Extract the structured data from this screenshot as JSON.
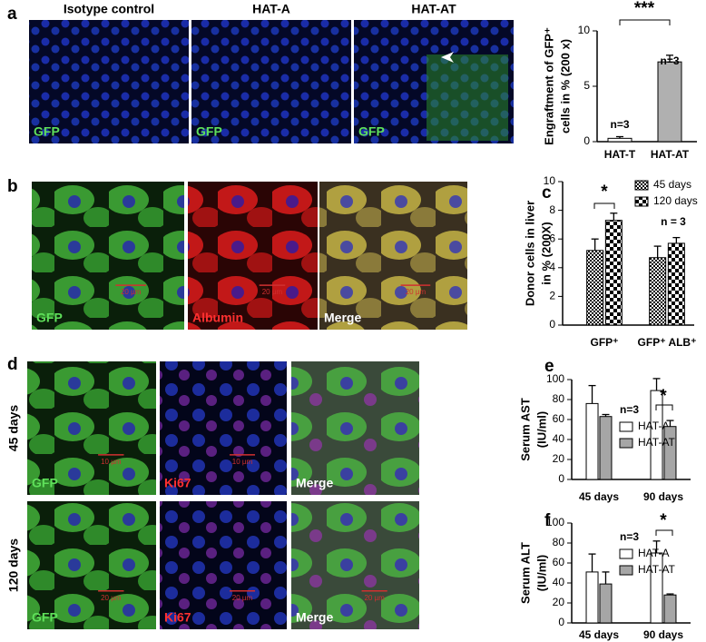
{
  "figure": {
    "labels": [
      "a",
      "b",
      "c",
      "d",
      "e",
      "f"
    ],
    "a": {
      "titles": [
        "Isotype control",
        "HAT-A",
        "HAT-AT"
      ],
      "channels": [
        "GFP",
        "GFP",
        "GFP"
      ]
    },
    "b": {
      "channels": [
        "GFP",
        "Albumin",
        "Merge"
      ],
      "scale": [
        "20 µm",
        "20 µm",
        "20 µm"
      ]
    },
    "d": {
      "rows": [
        "45 days",
        "120 days"
      ],
      "channels": [
        [
          "GFP",
          "Ki67",
          "Merge"
        ],
        [
          "GFP",
          "Ki67",
          "Merge"
        ]
      ],
      "scale": [
        [
          "10 µm",
          "10 µm"
        ],
        [
          "20 µm",
          "20 µm",
          "20 µm"
        ]
      ]
    }
  },
  "chart_data": [
    {
      "type": "bar",
      "ylabel": [
        "Engraftment of GFP⁺",
        "cells in % (200 x)"
      ],
      "categories": [
        "HAT-T",
        "HAT-AT"
      ],
      "series": [
        {
          "values": [
            0.3,
            7.2
          ],
          "errors": [
            0.15,
            0.6
          ],
          "colors": [
            "#ffffff",
            "#b0b0b0"
          ]
        }
      ],
      "ylim": [
        0,
        10
      ],
      "yticks": [
        0,
        5,
        10
      ],
      "annotations": [
        "n=3",
        "n=3",
        "***"
      ]
    },
    {
      "type": "bar",
      "ylabel": [
        "Donor cells in liver",
        "in % (200X)"
      ],
      "categories": [
        "GFP⁺",
        "GFP⁺ ALB⁺"
      ],
      "series": [
        {
          "name": "45 days",
          "values": [
            5.2,
            4.7
          ],
          "errors": [
            0.8,
            0.8
          ],
          "hatch": "fine"
        },
        {
          "name": "120 days",
          "values": [
            7.3,
            5.7
          ],
          "errors": [
            0.5,
            0.4
          ],
          "hatch": "coarse"
        }
      ],
      "ylim": [
        0,
        10
      ],
      "yticks": [
        0,
        2,
        4,
        6,
        8,
        10
      ],
      "annotations": [
        "*",
        "n = 3"
      ]
    },
    {
      "type": "bar",
      "ylabel": [
        "Serum AST",
        "(IU/ml)"
      ],
      "categories": [
        "45 days",
        "90 days"
      ],
      "series": [
        {
          "name": "HAT-A",
          "values": [
            76,
            89
          ],
          "errors": [
            18,
            12
          ],
          "color": "#ffffff"
        },
        {
          "name": "HAT-AT",
          "values": [
            63,
            53
          ],
          "errors": [
            2,
            6
          ],
          "color": "#a6a6a6"
        }
      ],
      "ylim": [
        0,
        100
      ],
      "yticks": [
        0,
        20,
        40,
        60,
        80,
        100
      ],
      "annotations": [
        "*",
        "n=3"
      ]
    },
    {
      "type": "bar",
      "ylabel": [
        "Serum ALT",
        "(IU/ml)"
      ],
      "categories": [
        "45 days",
        "90 days"
      ],
      "series": [
        {
          "name": "HAT-A",
          "values": [
            51,
            70
          ],
          "errors": [
            18,
            12
          ],
          "color": "#ffffff"
        },
        {
          "name": "HAT-AT",
          "values": [
            39,
            28
          ],
          "errors": [
            12,
            1
          ],
          "color": "#a6a6a6"
        }
      ],
      "ylim": [
        0,
        100
      ],
      "yticks": [
        0,
        20,
        40,
        60,
        80,
        100
      ],
      "annotations": [
        "*",
        "n=3"
      ]
    }
  ]
}
